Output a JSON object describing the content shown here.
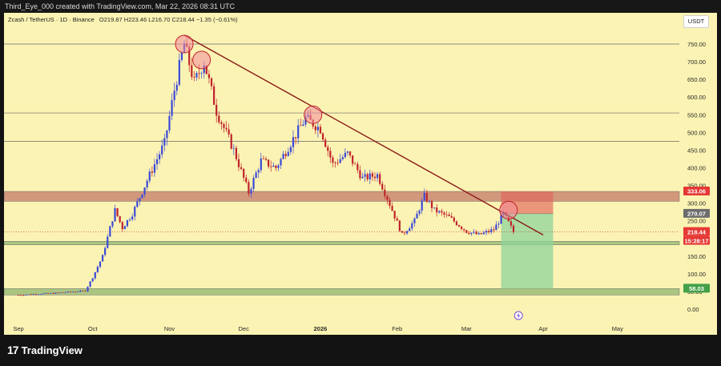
{
  "header": {
    "caption": "Third_Eye_000 created with TradingView.com, Mar 22, 2026 08:31 UTC"
  },
  "legend": {
    "symbol": "Zcash / TetherUS · 1D · Binance",
    "open": "O219.87",
    "high": "H223.46",
    "low": "L216.70",
    "close": "C218.44",
    "change": "−1.35 (−0.61%)"
  },
  "currency_button": "USDT",
  "price_axis": {
    "ticks": [
      "750.00",
      "700.00",
      "650.00",
      "600.00",
      "550.00",
      "500.00",
      "450.00",
      "400.00",
      "350.00",
      "300.00",
      "250.00",
      "200.00",
      "150.00",
      "100.00",
      "50.00",
      "0.00"
    ],
    "badges": {
      "resistance": {
        "label": "333.06",
        "color": "#e53935"
      },
      "entry": {
        "label": "270.07",
        "color": "#6d6d6d"
      },
      "last_price": {
        "label": "218.44",
        "color": "#e53935"
      },
      "countdown": {
        "label": "15:28:17",
        "color": "#e53935"
      },
      "target": {
        "label": "58.03",
        "color": "#43a047"
      }
    }
  },
  "time_axis": {
    "labels": [
      "Sep",
      "Oct",
      "Nov",
      "Dec",
      "2026",
      "Feb",
      "Mar",
      "Apr",
      "May"
    ],
    "bold": "2026"
  },
  "branding": {
    "logo_mark": "17",
    "logo_text": "TradingView"
  },
  "colors": {
    "background": "#fbf3b3",
    "candle_up": "#3b49d8",
    "candle_down": "#c0222b",
    "trendline": "#8b1a1a",
    "resistance_zone": "#c47a6a",
    "support_zone": "#8fb56f",
    "stop_zone": "#e0655a",
    "profit_zone": "#8fd49b"
  },
  "chart_data": {
    "type": "candlestick",
    "title": "Zcash / TetherUS · 1D · Binance",
    "ylim": [
      0,
      800
    ],
    "y_scale": "linear",
    "x_labels": [
      "Sep",
      "Oct",
      "Nov",
      "Dec",
      "2026",
      "Feb",
      "Mar",
      "Apr",
      "May"
    ],
    "close_path": [
      [
        "Sep 1",
        40
      ],
      [
        "Sep 15",
        45
      ],
      [
        "Sep 28",
        52
      ],
      [
        "Oct 1",
        90
      ],
      [
        "Oct 5",
        150
      ],
      [
        "Oct 8",
        230
      ],
      [
        "Oct 10",
        280
      ],
      [
        "Oct 13",
        230
      ],
      [
        "Oct 17",
        270
      ],
      [
        "Oct 24",
        380
      ],
      [
        "Oct 30",
        470
      ],
      [
        "Nov 3",
        620
      ],
      [
        "Nov 7",
        750
      ],
      [
        "Nov 11",
        640
      ],
      [
        "Nov 15",
        700
      ],
      [
        "Nov 20",
        560
      ],
      [
        "Nov 27",
        450
      ],
      [
        "Dec 3",
        330
      ],
      [
        "Dec 8",
        420
      ],
      [
        "Dec 14",
        400
      ],
      [
        "Dec 20",
        470
      ],
      [
        "Dec 26",
        540
      ],
      [
        "Jan 1",
        510
      ],
      [
        "Jan 6",
        410
      ],
      [
        "Jan 12",
        440
      ],
      [
        "Jan 18",
        370
      ],
      [
        "Jan 24",
        380
      ],
      [
        "Jan 30",
        280
      ],
      [
        "Feb 3",
        210
      ],
      [
        "Feb 8",
        250
      ],
      [
        "Feb 12",
        320
      ],
      [
        "Feb 16",
        280
      ],
      [
        "Feb 22",
        260
      ],
      [
        "Mar 1",
        220
      ],
      [
        "Mar 6",
        210
      ],
      [
        "Mar 12",
        225
      ],
      [
        "Mar 16",
        270
      ],
      [
        "Mar 20",
        218.44
      ]
    ],
    "trendline": {
      "from": [
        "Nov 7",
        775
      ],
      "to": [
        "Apr 1",
        210
      ]
    },
    "zones": [
      {
        "name": "resistance",
        "from": 305,
        "to": 333.06
      },
      {
        "name": "support",
        "from": 182,
        "to": 192
      },
      {
        "name": "base",
        "from": 40,
        "to": 58.03
      }
    ],
    "horizontal_lines": [
      750,
      555,
      475
    ],
    "position": {
      "entry": 270.07,
      "stop": 333.06,
      "target": 58.03,
      "type": "short"
    },
    "markers": [
      [
        "Nov 7",
        750
      ],
      [
        "Nov 14",
        705
      ],
      [
        "Dec 29",
        550
      ],
      [
        "Mar 18",
        280
      ]
    ]
  }
}
